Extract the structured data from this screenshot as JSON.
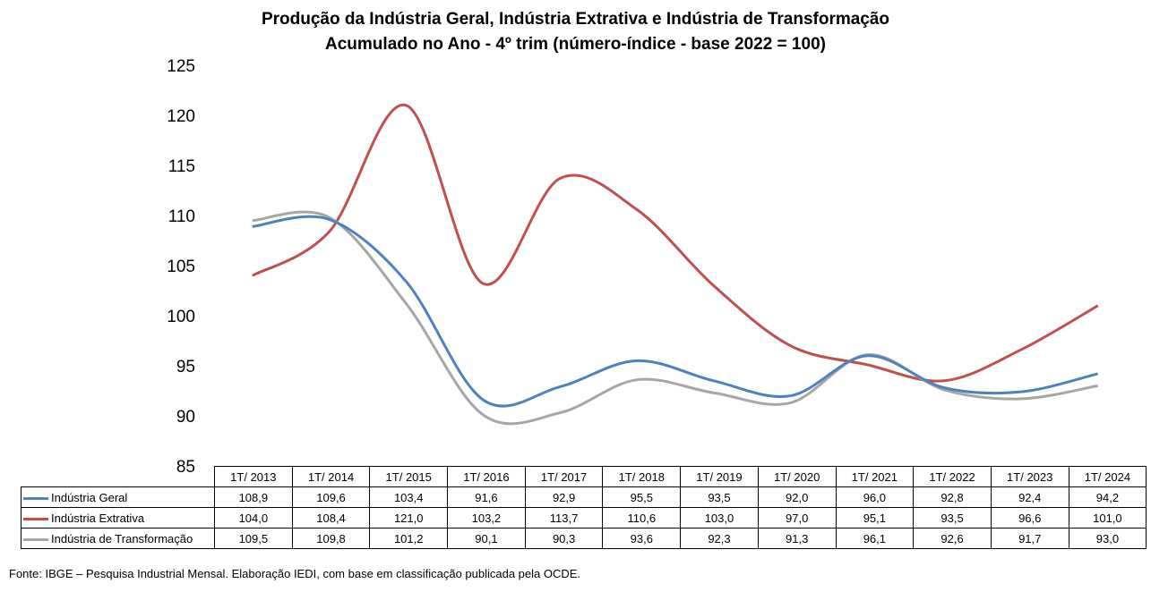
{
  "title_line1": "Produção da Indústria Geral, Indústria Extrativa e Indústria de Transformação",
  "title_line2": "Acumulado no Ano - 4º trim (número-índice - base 2022 = 100)",
  "source": "Fonte: IBGE – Pesquisa Industrial Mensal. Elaboração IEDI, com base em classificação publicada pela OCDE.",
  "chart_data": {
    "type": "line",
    "title": "Produção da Indústria Geral, Indústria Extrativa e Indústria de Transformação Acumulado no Ano - 4º trim (número-índice - base 2022 = 100)",
    "categories": [
      "1T/ 2013",
      "1T/ 2014",
      "1T/ 2015",
      "1T/ 2016",
      "1T/ 2017",
      "1T/ 2018",
      "1T/ 2019",
      "1T/ 2020",
      "1T/ 2021",
      "1T/ 2022",
      "1T/ 2023",
      "1T/ 2024"
    ],
    "ylim": [
      85,
      125
    ],
    "yticks": [
      "125",
      "120",
      "115",
      "110",
      "105",
      "100",
      "95",
      "90",
      "85"
    ],
    "grid": false,
    "legend": "data-table",
    "series": [
      {
        "name": "Indústria Geral",
        "color": "#4f81bd",
        "values": [
          108.9,
          109.6,
          103.4,
          91.6,
          92.9,
          95.5,
          93.5,
          92.0,
          96.0,
          92.8,
          92.4,
          94.2
        ],
        "labels": [
          "108,9",
          "109,6",
          "103,4",
          "91,6",
          "92,9",
          "95,5",
          "93,5",
          "92,0",
          "96,0",
          "92,8",
          "92,4",
          "94,2"
        ]
      },
      {
        "name": "Indústria Extrativa",
        "color": "#c0504d",
        "values": [
          104.0,
          108.4,
          121.0,
          103.2,
          113.7,
          110.6,
          103.0,
          97.0,
          95.1,
          93.5,
          96.6,
          101.0
        ],
        "labels": [
          "104,0",
          "108,4",
          "121,0",
          "103,2",
          "113,7",
          "110,6",
          "103,0",
          "97,0",
          "95,1",
          "93,5",
          "96,6",
          "101,0"
        ]
      },
      {
        "name": "Indústria de Transformação",
        "color": "#a6a6a6",
        "values": [
          109.5,
          109.8,
          101.2,
          90.1,
          90.3,
          93.6,
          92.3,
          91.3,
          96.1,
          92.6,
          91.7,
          93.0
        ],
        "labels": [
          "109,5",
          "109,8",
          "101,2",
          "90,1",
          "90,3",
          "93,6",
          "92,3",
          "91,3",
          "96,1",
          "92,6",
          "91,7",
          "93,0"
        ]
      }
    ]
  }
}
